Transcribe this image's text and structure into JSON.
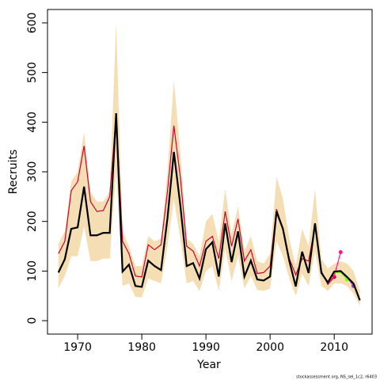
{
  "chart_data": {
    "type": "line",
    "xlabel": "Year",
    "ylabel": "Recruits",
    "footnote": "stockassessment.org, NS_sel_1c2, r6403",
    "x": [
      1967,
      1968,
      1969,
      1970,
      1971,
      1972,
      1973,
      1974,
      1975,
      1976,
      1977,
      1978,
      1979,
      1980,
      1981,
      1982,
      1983,
      1984,
      1985,
      1986,
      1987,
      1988,
      1989,
      1990,
      1991,
      1992,
      1993,
      1994,
      1995,
      1996,
      1997,
      1998,
      1999,
      2000,
      2001,
      2002,
      2003,
      2004,
      2005,
      2006,
      2007,
      2008,
      2009,
      2010,
      2011,
      2012,
      2013,
      2014
    ],
    "band": {
      "color": "#f5deb3",
      "lower": [
        65,
        90,
        130,
        130,
        190,
        120,
        120,
        125,
        125,
        300,
        70,
        75,
        48,
        47,
        85,
        80,
        75,
        150,
        245,
        165,
        75,
        80,
        60,
        100,
        110,
        60,
        145,
        80,
        130,
        65,
        90,
        62,
        60,
        65,
        160,
        130,
        85,
        50,
        95,
        70,
        140,
        70,
        60,
        75,
        75,
        70,
        55,
        30
      ],
      "upper": [
        155,
        180,
        280,
        300,
        380,
        260,
        240,
        240,
        260,
        600,
        180,
        150,
        110,
        110,
        170,
        160,
        165,
        300,
        485,
        340,
        165,
        155,
        130,
        200,
        215,
        160,
        265,
        175,
        230,
        140,
        170,
        120,
        115,
        135,
        290,
        245,
        165,
        110,
        185,
        150,
        265,
        125,
        105,
        115,
        120,
        115,
        100,
        60
      ]
    },
    "series": [
      {
        "color": "#cc0033",
        "last_point_marker": true,
        "values": [
          135,
          160,
          262,
          280,
          352,
          240,
          220,
          222,
          250,
          415,
          160,
          135,
          90,
          88,
          153,
          143,
          153,
          260,
          393,
          290,
          150,
          140,
          110,
          160,
          170,
          125,
          220,
          150,
          205,
          120,
          143,
          95,
          97,
          110,
          225,
          185,
          125,
          92,
          125,
          120,
          190,
          100,
          73,
          88,
          null,
          null,
          null,
          null
        ]
      },
      {
        "color": "#ff1493",
        "last_point_marker": true,
        "values": [
          null,
          null,
          null,
          null,
          null,
          null,
          null,
          null,
          null,
          null,
          null,
          null,
          null,
          null,
          null,
          null,
          null,
          null,
          null,
          null,
          null,
          null,
          null,
          null,
          null,
          null,
          null,
          null,
          null,
          null,
          null,
          null,
          null,
          null,
          null,
          null,
          null,
          null,
          null,
          null,
          null,
          null,
          75,
          90,
          138,
          null,
          null,
          null
        ]
      },
      {
        "color": "#7fff00",
        "last_point_marker": true,
        "values": [
          null,
          null,
          null,
          null,
          null,
          null,
          null,
          null,
          null,
          null,
          null,
          null,
          null,
          null,
          null,
          null,
          null,
          null,
          null,
          null,
          null,
          null,
          null,
          null,
          null,
          null,
          null,
          null,
          null,
          null,
          null,
          null,
          null,
          null,
          null,
          null,
          null,
          null,
          null,
          null,
          null,
          null,
          null,
          97,
          97,
          83,
          null,
          null
        ]
      },
      {
        "color": "#9932cc",
        "last_point_marker": true,
        "values": [
          null,
          null,
          null,
          null,
          null,
          null,
          null,
          null,
          null,
          null,
          null,
          null,
          null,
          null,
          null,
          null,
          null,
          null,
          null,
          null,
          null,
          null,
          null,
          null,
          null,
          null,
          null,
          null,
          null,
          null,
          null,
          null,
          null,
          null,
          null,
          null,
          null,
          null,
          null,
          null,
          null,
          null,
          null,
          null,
          100,
          88,
          70,
          null
        ]
      },
      {
        "color": "#000000",
        "last_point_marker": false,
        "values": [
          97,
          124,
          185,
          188,
          270,
          172,
          172,
          177,
          177,
          418,
          99,
          113,
          70,
          68,
          121,
          110,
          102,
          206,
          340,
          233,
          110,
          116,
          85,
          144,
          158,
          89,
          196,
          118,
          180,
          89,
          121,
          83,
          81,
          89,
          220,
          185,
          120,
          69,
          139,
          96,
          196,
          96,
          77,
          99,
          100,
          88,
          75,
          41
        ]
      }
    ],
    "xlim": [
      1965.3,
      2015.9
    ],
    "ylim": [
      -27,
      627
    ],
    "xticks": [
      1970,
      1980,
      1990,
      2000,
      2010
    ],
    "yticks": [
      0,
      100,
      200,
      300,
      400,
      500,
      600
    ]
  }
}
